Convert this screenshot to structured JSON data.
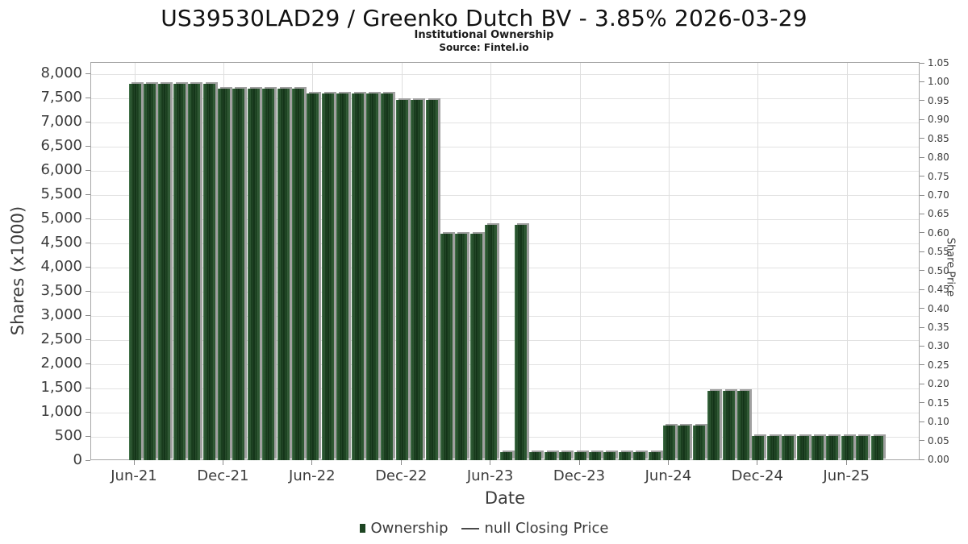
{
  "header": {
    "title": "US39530LAD29 / Greenko Dutch BV - 3.85% 2026-03-29",
    "subtitle": "Institutional Ownership",
    "source": "Source: Fintel.io"
  },
  "chart_data": {
    "type": "bar",
    "title": "US39530LAD29 / Greenko Dutch BV - 3.85% 2026-03-29",
    "subtitle": "Institutional Ownership",
    "source": "Source: Fintel.io",
    "xlabel": "Date",
    "ylabel_left": "Shares (x1000)",
    "ylabel_right": "Share Price",
    "ylim_left": [
      0,
      8000
    ],
    "ytick_step_left": 500,
    "ylim_right": [
      0.0,
      1.05
    ],
    "ytick_step_right": 0.05,
    "grid": true,
    "legend_position": "bottom",
    "x": [
      "Jun-21",
      "Jul-21",
      "Aug-21",
      "Sep-21",
      "Oct-21",
      "Nov-21",
      "Dec-21",
      "Jan-22",
      "Feb-22",
      "Mar-22",
      "Apr-22",
      "May-22",
      "Jun-22",
      "Jul-22",
      "Aug-22",
      "Sep-22",
      "Oct-22",
      "Nov-22",
      "Dec-22",
      "Jan-23",
      "Feb-23",
      "Mar-23",
      "Apr-23",
      "May-23",
      "Jun-23",
      "Jul-23",
      "Aug-23",
      "Sep-23",
      "Oct-23",
      "Nov-23",
      "Dec-23",
      "Jan-24",
      "Feb-24",
      "Mar-24",
      "Apr-24",
      "May-24",
      "Jun-24",
      "Jul-24",
      "Aug-24",
      "Sep-24",
      "Oct-24",
      "Nov-24",
      "Dec-24",
      "Jan-25",
      "Feb-25",
      "Mar-25",
      "Apr-25",
      "May-25",
      "Jun-25",
      "Jul-25",
      "Aug-25"
    ],
    "series": [
      {
        "name": "Ownership",
        "unit": "shares x1000",
        "values": [
          7800,
          7800,
          7800,
          7800,
          7800,
          7800,
          7700,
          7700,
          7700,
          7700,
          7700,
          7700,
          7600,
          7600,
          7600,
          7600,
          7600,
          7600,
          7460,
          7460,
          7460,
          4700,
          4700,
          4700,
          4890,
          185,
          4890,
          185,
          185,
          185,
          185,
          185,
          185,
          185,
          185,
          185,
          730,
          730,
          730,
          1450,
          1450,
          1450,
          525,
          525,
          525,
          525,
          525,
          525,
          525,
          525,
          525
        ]
      },
      {
        "name": "null Closing Price",
        "unit": "price",
        "values": null
      }
    ],
    "x_tick_labels": [
      "Jun-21",
      "Dec-21",
      "Jun-22",
      "Dec-22",
      "Jun-23",
      "Dec-23",
      "Jun-24",
      "Dec-24",
      "Jun-25"
    ],
    "x_tick_month_indices": [
      0,
      6,
      12,
      18,
      24,
      30,
      36,
      42,
      48
    ],
    "legend": [
      {
        "label": "Ownership",
        "marker": "square",
        "color": "#1d4522"
      },
      {
        "label": "null Closing Price",
        "marker": "line",
        "color": "#4a4a4a"
      }
    ],
    "colors": {
      "bar_fill": "#1d4522",
      "bar_shadow": "#a0a0a0",
      "gridline": "#e2e2e2",
      "plot_border": "#a6a6a6",
      "text": "#3c3c3c"
    }
  }
}
